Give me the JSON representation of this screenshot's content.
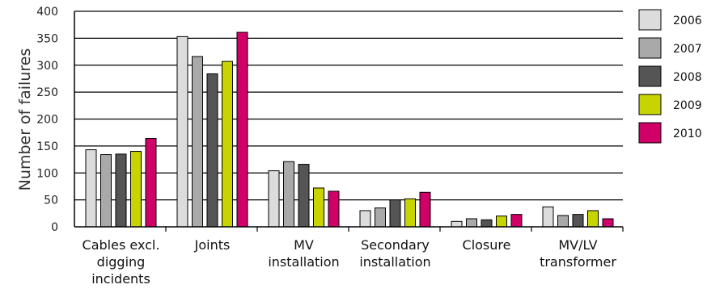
{
  "chart_data": {
    "type": "bar",
    "ylabel": "Number of failures",
    "xlabel": "",
    "ylim": [
      0,
      400
    ],
    "yticks": [
      0,
      50,
      100,
      150,
      200,
      250,
      300,
      350,
      400
    ],
    "grid": true,
    "legend_position": "right",
    "categories": [
      [
        "Cables excl.",
        "digging",
        "incidents"
      ],
      [
        "Joints"
      ],
      [
        "MV",
        "installation"
      ],
      [
        "Secondary",
        "installation"
      ],
      [
        "Closure"
      ],
      [
        "MV/LV",
        "transformer"
      ]
    ],
    "series": [
      {
        "name": "2006",
        "color": "#dcdcdc",
        "values": [
          143,
          353,
          104,
          30,
          10,
          37
        ]
      },
      {
        "name": "2007",
        "color": "#a9a9a9",
        "values": [
          134,
          316,
          121,
          35,
          15,
          21
        ]
      },
      {
        "name": "2008",
        "color": "#555555",
        "values": [
          135,
          284,
          116,
          50,
          13,
          23
        ]
      },
      {
        "name": "2009",
        "color": "#c8d400",
        "values": [
          140,
          307,
          72,
          52,
          20,
          30
        ]
      },
      {
        "name": "2010",
        "color": "#d00068",
        "values": [
          164,
          361,
          66,
          64,
          23,
          15
        ]
      }
    ]
  }
}
